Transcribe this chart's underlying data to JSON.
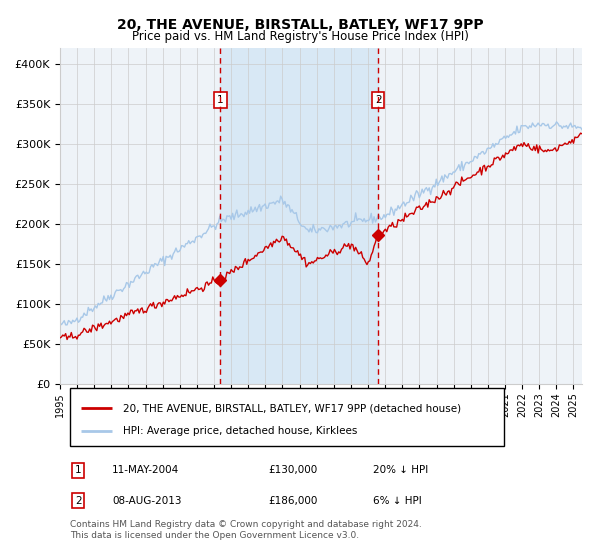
{
  "title": "20, THE AVENUE, BIRSTALL, BATLEY, WF17 9PP",
  "subtitle": "Price paid vs. HM Land Registry's House Price Index (HPI)",
  "hpi_color": "#a8c8e8",
  "price_color": "#cc0000",
  "bg_color": "#ffffff",
  "plot_bg_color": "#eef3f8",
  "shaded_region_color": "#d8e8f5",
  "grid_color": "#cccccc",
  "sale1_date": 2004.37,
  "sale1_price": 130000,
  "sale1_label": "1",
  "sale2_date": 2013.59,
  "sale2_price": 186000,
  "sale2_label": "2",
  "xmin": 1995,
  "xmax": 2025.5,
  "ymin": 0,
  "ymax": 420000,
  "yticks": [
    0,
    50000,
    100000,
    150000,
    200000,
    250000,
    300000,
    350000,
    400000
  ],
  "ytick_labels": [
    "£0",
    "£50K",
    "£100K",
    "£150K",
    "£200K",
    "£250K",
    "£300K",
    "£350K",
    "£400K"
  ],
  "xtick_years": [
    1995,
    1996,
    1997,
    1998,
    1999,
    2000,
    2001,
    2002,
    2003,
    2004,
    2005,
    2006,
    2007,
    2008,
    2009,
    2010,
    2011,
    2012,
    2013,
    2014,
    2015,
    2016,
    2017,
    2018,
    2019,
    2020,
    2021,
    2022,
    2023,
    2024,
    2025
  ],
  "legend_line1": "20, THE AVENUE, BIRSTALL, BATLEY, WF17 9PP (detached house)",
  "legend_line2": "HPI: Average price, detached house, Kirklees",
  "annotation1_date": "11-MAY-2004",
  "annotation1_price": "£130,000",
  "annotation1_hpi": "20% ↓ HPI",
  "annotation2_date": "08-AUG-2013",
  "annotation2_price": "£186,000",
  "annotation2_hpi": "6% ↓ HPI",
  "footer": "Contains HM Land Registry data © Crown copyright and database right 2024.\nThis data is licensed under the Open Government Licence v3.0."
}
